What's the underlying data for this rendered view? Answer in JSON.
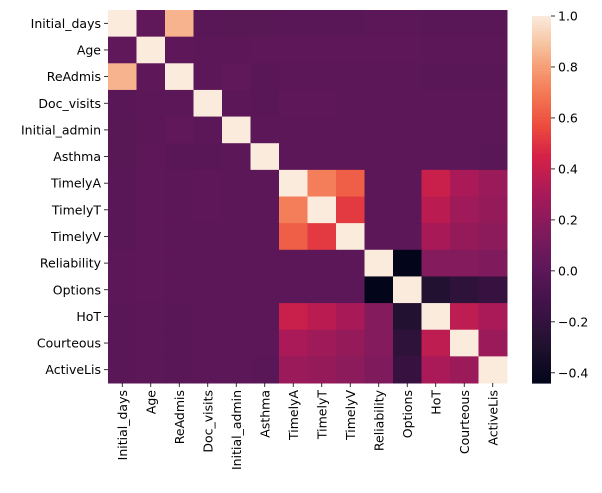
{
  "chart_data": {
    "type": "heatmap",
    "title": "",
    "xlabel": "",
    "ylabel": "",
    "rows": [
      "Initial_days",
      "Age",
      "ReAdmis",
      "Doc_visits",
      "Initial_admin",
      "Asthma",
      "TimelyA",
      "TimelyT",
      "TimelyV",
      "Reliability",
      "Options",
      "HoT",
      "Courteous",
      "ActiveLis"
    ],
    "columns": [
      "Initial_days",
      "Age",
      "ReAdmis",
      "Doc_visits",
      "Initial_admin",
      "Asthma",
      "TimelyA",
      "TimelyT",
      "TimelyV",
      "Reliability",
      "Options",
      "HoT",
      "Courteous",
      "ActiveLis"
    ],
    "values": [
      [
        1.0,
        0.02,
        0.85,
        -0.01,
        -0.02,
        -0.02,
        -0.01,
        -0.01,
        -0.01,
        0.0,
        0.0,
        -0.01,
        -0.01,
        -0.01
      ],
      [
        0.02,
        1.0,
        0.01,
        0.0,
        0.0,
        0.01,
        0.01,
        0.01,
        0.01,
        0.01,
        0.01,
        0.0,
        0.0,
        0.0
      ],
      [
        0.85,
        0.01,
        1.0,
        0.0,
        0.02,
        -0.01,
        0.0,
        0.0,
        0.0,
        0.0,
        0.0,
        -0.01,
        -0.01,
        -0.01
      ],
      [
        -0.01,
        0.0,
        0.0,
        1.0,
        0.0,
        -0.01,
        0.01,
        0.01,
        0.0,
        0.0,
        0.0,
        0.0,
        0.0,
        0.0
      ],
      [
        -0.02,
        0.0,
        0.02,
        0.0,
        1.0,
        0.0,
        0.0,
        0.0,
        0.0,
        0.0,
        0.0,
        0.0,
        0.0,
        0.0
      ],
      [
        -0.02,
        0.01,
        -0.01,
        -0.01,
        0.0,
        1.0,
        0.0,
        0.0,
        0.0,
        0.0,
        0.0,
        0.0,
        0.0,
        -0.01
      ],
      [
        -0.01,
        0.01,
        0.0,
        0.01,
        0.0,
        0.0,
        1.0,
        0.71,
        0.62,
        0.0,
        0.0,
        0.41,
        0.31,
        0.25
      ],
      [
        -0.01,
        0.01,
        0.0,
        0.01,
        0.0,
        0.0,
        0.71,
        1.0,
        0.52,
        0.0,
        0.0,
        0.36,
        0.27,
        0.23
      ],
      [
        -0.01,
        0.01,
        0.0,
        0.0,
        0.0,
        0.0,
        0.62,
        0.52,
        1.0,
        0.0,
        0.0,
        0.3,
        0.23,
        0.2
      ],
      [
        0.0,
        0.01,
        0.0,
        0.0,
        0.0,
        0.0,
        0.0,
        0.0,
        0.0,
        1.0,
        -0.44,
        0.17,
        0.17,
        0.15
      ],
      [
        0.0,
        0.01,
        0.0,
        0.0,
        0.0,
        0.0,
        0.0,
        0.0,
        0.0,
        -0.44,
        1.0,
        -0.28,
        -0.22,
        -0.18
      ],
      [
        -0.01,
        0.0,
        -0.01,
        0.0,
        0.0,
        0.0,
        0.41,
        0.36,
        0.3,
        0.17,
        -0.28,
        1.0,
        0.37,
        0.31
      ],
      [
        -0.01,
        0.0,
        -0.01,
        0.0,
        0.0,
        0.0,
        0.31,
        0.27,
        0.23,
        0.17,
        -0.22,
        0.37,
        1.0,
        0.25
      ],
      [
        -0.01,
        0.0,
        -0.01,
        0.0,
        0.0,
        -0.01,
        0.25,
        0.23,
        0.2,
        0.15,
        -0.18,
        0.31,
        0.25,
        1.0
      ]
    ],
    "colormap": "rocket",
    "vmin": -0.44,
    "vmax": 1.0,
    "colorbar_ticks": [
      1.0,
      0.8,
      0.6,
      0.4,
      0.2,
      0.0,
      -0.2,
      -0.4
    ],
    "colorbar_tick_labels": [
      "1.0",
      "0.8",
      "0.6",
      "0.4",
      "0.2",
      "0.0",
      "−0.2",
      "−0.4"
    ],
    "colorbar_position": "right",
    "grid": false
  }
}
